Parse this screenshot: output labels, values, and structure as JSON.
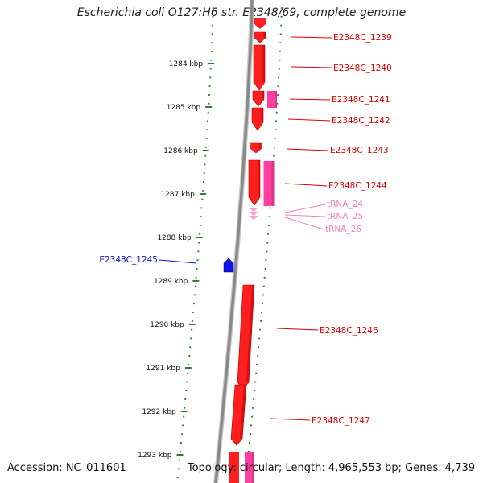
{
  "title": "Escherichia coli O127:H6 str. E2348/69, complete genome",
  "accession": "Accession: NC_011601",
  "stats": "Topology: circular; Length: 4,965,553 bp; Genes: 4,739",
  "colors": {
    "cds": "#ff1f1f",
    "cds_dark": "#b30000",
    "pseudo": "#ff3fa0",
    "trna": "#ff9ec8",
    "reverse_cds": "#1010e8",
    "axis": "#8a8a8a",
    "ticks": "#2e7d2e",
    "label_red": "#dd0000",
    "label_pink": "#f080b8",
    "label_blue": "#1010c0"
  },
  "kbp_ticks": [
    "1284 kbp",
    "1285 kbp",
    "1286 kbp",
    "1287 kbp",
    "1288 kbp",
    "1289 kbp",
    "1290 kbp",
    "1291 kbp",
    "1292 kbp",
    "1293 kbp"
  ],
  "gene_labels": [
    {
      "text": "E2348C_1239",
      "kind": "cds"
    },
    {
      "text": "E2348C_1240",
      "kind": "cds"
    },
    {
      "text": "E2348C_1241",
      "kind": "cds"
    },
    {
      "text": "E2348C_1242",
      "kind": "cds"
    },
    {
      "text": "E2348C_1243",
      "kind": "cds"
    },
    {
      "text": "E2348C_1244",
      "kind": "cds"
    },
    {
      "text": "tRNA_24",
      "kind": "trna"
    },
    {
      "text": "tRNA_25",
      "kind": "trna"
    },
    {
      "text": "tRNA_26",
      "kind": "trna"
    },
    {
      "text": "E2348C_1245",
      "kind": "reverse"
    },
    {
      "text": "E2348C_1246",
      "kind": "cds"
    },
    {
      "text": "E2348C_1247",
      "kind": "cds"
    }
  ]
}
